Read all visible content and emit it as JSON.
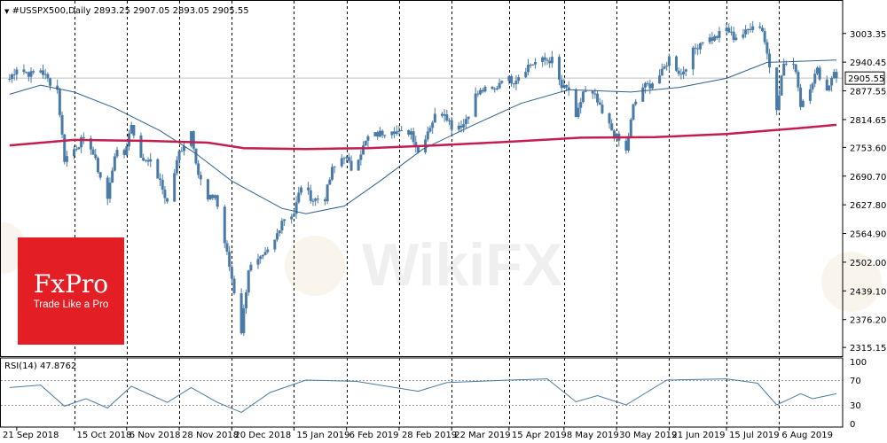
{
  "chart_data": {
    "type": "candlestick",
    "main": {
      "title_text": "#USSPX500,Daily",
      "ohlc_text": "2893.25 2907.05 2893.05 2905.55",
      "current_price": "2905.55",
      "y_ticks": [
        "3003.35",
        "2940.45",
        "2877.55",
        "2814.65",
        "2753.60",
        "2690.70",
        "2627.80",
        "2564.90",
        "2502.00",
        "2439.10",
        "2376.20",
        "2315.15"
      ],
      "y_tick_values": [
        3003.35,
        2940.45,
        2877.55,
        2814.65,
        2753.6,
        2690.7,
        2627.8,
        2564.9,
        2502.0,
        2439.1,
        2376.2,
        2315.15
      ],
      "ylim": [
        2296,
        3034
      ],
      "x_ticks": [
        "21 Sep 2018",
        "15 Oct 2018",
        "6 Nov 2018",
        "28 Nov 2018",
        "20 Dec 2018",
        "15 Jan 2019",
        "6 Feb 2019",
        "28 Feb 2019",
        "22 Mar 2019",
        "15 Apr 2019",
        "8 May 2019",
        "30 May 2019",
        "21 Jun 2019",
        "15 Jul 2019",
        "6 Aug 2019"
      ],
      "vertical_dashed_lines_at": [
        "15 Oct 2018",
        "6 Nov 2018",
        "28 Nov 2018",
        "20 Dec 2018",
        "15 Jan 2019",
        "6 Feb 2019",
        "28 Feb 2019",
        "22 Mar 2019",
        "15 Apr 2019",
        "8 May 2019",
        "30 May 2019",
        "21 Jun 2019",
        "15 Jul 2019",
        "6 Aug 2019"
      ],
      "close_series": [
        {
          "x": "2018-09-18",
          "y": 2904
        },
        {
          "x": "2018-09-21",
          "y": 2929
        },
        {
          "x": "2018-09-24",
          "y": 2920
        },
        {
          "x": "2018-09-27",
          "y": 2914
        },
        {
          "x": "2018-10-01",
          "y": 2924
        },
        {
          "x": "2018-10-04",
          "y": 2902
        },
        {
          "x": "2018-10-08",
          "y": 2880
        },
        {
          "x": "2018-10-11",
          "y": 2728
        },
        {
          "x": "2018-10-15",
          "y": 2750
        },
        {
          "x": "2018-10-18",
          "y": 2768
        },
        {
          "x": "2018-10-22",
          "y": 2756
        },
        {
          "x": "2018-10-25",
          "y": 2705
        },
        {
          "x": "2018-10-29",
          "y": 2640
        },
        {
          "x": "2018-11-01",
          "y": 2740
        },
        {
          "x": "2018-11-05",
          "y": 2738
        },
        {
          "x": "2018-11-08",
          "y": 2806
        },
        {
          "x": "2018-11-12",
          "y": 2726
        },
        {
          "x": "2018-11-15",
          "y": 2730
        },
        {
          "x": "2018-11-19",
          "y": 2690
        },
        {
          "x": "2018-11-23",
          "y": 2633
        },
        {
          "x": "2018-11-28",
          "y": 2743
        },
        {
          "x": "2018-12-03",
          "y": 2790
        },
        {
          "x": "2018-12-06",
          "y": 2695
        },
        {
          "x": "2018-12-10",
          "y": 2637
        },
        {
          "x": "2018-12-13",
          "y": 2650
        },
        {
          "x": "2018-12-17",
          "y": 2545
        },
        {
          "x": "2018-12-20",
          "y": 2467
        },
        {
          "x": "2018-12-24",
          "y": 2351
        },
        {
          "x": "2018-12-27",
          "y": 2488
        },
        {
          "x": "2019-01-02",
          "y": 2510
        },
        {
          "x": "2019-01-07",
          "y": 2549
        },
        {
          "x": "2019-01-10",
          "y": 2596
        },
        {
          "x": "2019-01-15",
          "y": 2610
        },
        {
          "x": "2019-01-18",
          "y": 2670
        },
        {
          "x": "2019-01-23",
          "y": 2639
        },
        {
          "x": "2019-01-28",
          "y": 2643
        },
        {
          "x": "2019-01-31",
          "y": 2704
        },
        {
          "x": "2019-02-05",
          "y": 2737
        },
        {
          "x": "2019-02-08",
          "y": 2707
        },
        {
          "x": "2019-02-12",
          "y": 2744
        },
        {
          "x": "2019-02-15",
          "y": 2775
        },
        {
          "x": "2019-02-20",
          "y": 2784
        },
        {
          "x": "2019-02-25",
          "y": 2796
        },
        {
          "x": "2019-02-28",
          "y": 2784
        },
        {
          "x": "2019-03-05",
          "y": 2789
        },
        {
          "x": "2019-03-08",
          "y": 2743
        },
        {
          "x": "2019-03-12",
          "y": 2791
        },
        {
          "x": "2019-03-15",
          "y": 2822
        },
        {
          "x": "2019-03-19",
          "y": 2832
        },
        {
          "x": "2019-03-22",
          "y": 2800
        },
        {
          "x": "2019-03-27",
          "y": 2805
        },
        {
          "x": "2019-04-01",
          "y": 2867
        },
        {
          "x": "2019-04-04",
          "y": 2879
        },
        {
          "x": "2019-04-09",
          "y": 2878
        },
        {
          "x": "2019-04-12",
          "y": 2907
        },
        {
          "x": "2019-04-17",
          "y": 2900
        },
        {
          "x": "2019-04-23",
          "y": 2933
        },
        {
          "x": "2019-04-26",
          "y": 2940
        },
        {
          "x": "2019-04-30",
          "y": 2945
        },
        {
          "x": "2019-05-03",
          "y": 2945
        },
        {
          "x": "2019-05-07",
          "y": 2884
        },
        {
          "x": "2019-05-10",
          "y": 2881
        },
        {
          "x": "2019-05-13",
          "y": 2812
        },
        {
          "x": "2019-05-16",
          "y": 2876
        },
        {
          "x": "2019-05-21",
          "y": 2864
        },
        {
          "x": "2019-05-24",
          "y": 2826
        },
        {
          "x": "2019-05-29",
          "y": 2783
        },
        {
          "x": "2019-06-03",
          "y": 2744
        },
        {
          "x": "2019-06-06",
          "y": 2843
        },
        {
          "x": "2019-06-10",
          "y": 2886
        },
        {
          "x": "2019-06-13",
          "y": 2891
        },
        {
          "x": "2019-06-18",
          "y": 2917
        },
        {
          "x": "2019-06-21",
          "y": 2950
        },
        {
          "x": "2019-06-26",
          "y": 2913
        },
        {
          "x": "2019-07-01",
          "y": 2964
        },
        {
          "x": "2019-07-05",
          "y": 2990
        },
        {
          "x": "2019-07-10",
          "y": 2993
        },
        {
          "x": "2019-07-15",
          "y": 3014
        },
        {
          "x": "2019-07-18",
          "y": 2995
        },
        {
          "x": "2019-07-23",
          "y": 3005
        },
        {
          "x": "2019-07-26",
          "y": 3025
        },
        {
          "x": "2019-07-30",
          "y": 3013
        },
        {
          "x": "2019-08-02",
          "y": 2932
        },
        {
          "x": "2019-08-05",
          "y": 2844
        },
        {
          "x": "2019-08-08",
          "y": 2938
        },
        {
          "x": "2019-08-13",
          "y": 2926
        },
        {
          "x": "2019-08-15",
          "y": 2847
        },
        {
          "x": "2019-08-20",
          "y": 2900
        },
        {
          "x": "2019-08-22",
          "y": 2922
        },
        {
          "x": "2019-08-26",
          "y": 2878
        },
        {
          "x": "2019-08-29",
          "y": 2924
        },
        {
          "x": "2019-08-30",
          "y": 2905
        }
      ],
      "ma_fast": [
        {
          "x": "2018-09-18",
          "y": 2870
        },
        {
          "x": "2018-10-01",
          "y": 2890
        },
        {
          "x": "2018-10-15",
          "y": 2875
        },
        {
          "x": "2018-11-01",
          "y": 2840
        },
        {
          "x": "2018-11-20",
          "y": 2790
        },
        {
          "x": "2018-12-05",
          "y": 2740
        },
        {
          "x": "2018-12-20",
          "y": 2680
        },
        {
          "x": "2019-01-10",
          "y": 2620
        },
        {
          "x": "2019-01-20",
          "y": 2608
        },
        {
          "x": "2019-02-05",
          "y": 2625
        },
        {
          "x": "2019-02-20",
          "y": 2680
        },
        {
          "x": "2019-03-10",
          "y": 2750
        },
        {
          "x": "2019-04-01",
          "y": 2805
        },
        {
          "x": "2019-04-20",
          "y": 2850
        },
        {
          "x": "2019-05-10",
          "y": 2880
        },
        {
          "x": "2019-06-05",
          "y": 2875
        },
        {
          "x": "2019-06-25",
          "y": 2885
        },
        {
          "x": "2019-07-15",
          "y": 2905
        },
        {
          "x": "2019-08-01",
          "y": 2940
        },
        {
          "x": "2019-08-30",
          "y": 2945
        }
      ],
      "ma_slow": [
        {
          "x": "2018-09-18",
          "y": 2758
        },
        {
          "x": "2018-10-15",
          "y": 2770
        },
        {
          "x": "2018-11-15",
          "y": 2768
        },
        {
          "x": "2018-12-10",
          "y": 2764
        },
        {
          "x": "2018-12-25",
          "y": 2752
        },
        {
          "x": "2019-01-20",
          "y": 2750
        },
        {
          "x": "2019-02-15",
          "y": 2752
        },
        {
          "x": "2019-03-15",
          "y": 2758
        },
        {
          "x": "2019-04-15",
          "y": 2766
        },
        {
          "x": "2019-05-15",
          "y": 2775
        },
        {
          "x": "2019-06-15",
          "y": 2776
        },
        {
          "x": "2019-07-15",
          "y": 2783
        },
        {
          "x": "2019-08-15",
          "y": 2796
        },
        {
          "x": "2019-08-30",
          "y": 2803
        }
      ],
      "colors": {
        "candle": "#4a7aa6",
        "ma_fast": "#2f5f8f",
        "ma_slow": "#c21f4e",
        "grid": "#000000"
      }
    },
    "rsi": {
      "label": "RSI(14) 47.8762",
      "y_ticks": [
        "100",
        "70",
        "30",
        "0"
      ],
      "y_tick_values": [
        100,
        70,
        30,
        0
      ],
      "levels": [
        30,
        70
      ],
      "values": [
        {
          "x": "2018-09-18",
          "y": 58
        },
        {
          "x": "2018-10-01",
          "y": 62
        },
        {
          "x": "2018-10-11",
          "y": 28
        },
        {
          "x": "2018-10-20",
          "y": 40
        },
        {
          "x": "2018-10-29",
          "y": 25
        },
        {
          "x": "2018-11-08",
          "y": 60
        },
        {
          "x": "2018-11-23",
          "y": 34
        },
        {
          "x": "2018-12-03",
          "y": 58
        },
        {
          "x": "2018-12-14",
          "y": 34
        },
        {
          "x": "2018-12-24",
          "y": 18
        },
        {
          "x": "2019-01-05",
          "y": 50
        },
        {
          "x": "2019-01-20",
          "y": 70
        },
        {
          "x": "2019-02-10",
          "y": 68
        },
        {
          "x": "2019-03-08",
          "y": 52
        },
        {
          "x": "2019-03-20",
          "y": 66
        },
        {
          "x": "2019-04-15",
          "y": 70
        },
        {
          "x": "2019-05-01",
          "y": 72
        },
        {
          "x": "2019-05-13",
          "y": 35
        },
        {
          "x": "2019-05-22",
          "y": 45
        },
        {
          "x": "2019-06-03",
          "y": 30
        },
        {
          "x": "2019-06-20",
          "y": 70
        },
        {
          "x": "2019-07-15",
          "y": 72
        },
        {
          "x": "2019-07-28",
          "y": 65
        },
        {
          "x": "2019-08-05",
          "y": 30
        },
        {
          "x": "2019-08-15",
          "y": 48
        },
        {
          "x": "2019-08-20",
          "y": 40
        },
        {
          "x": "2019-08-30",
          "y": 48
        }
      ],
      "ylim": [
        0,
        100
      ],
      "color": "#4a7aa6"
    }
  },
  "branding": {
    "name": "FxPro",
    "tagline": "Trade Like a Pro",
    "watermark": "WikiFX",
    "brand_color": "#e31e24"
  }
}
